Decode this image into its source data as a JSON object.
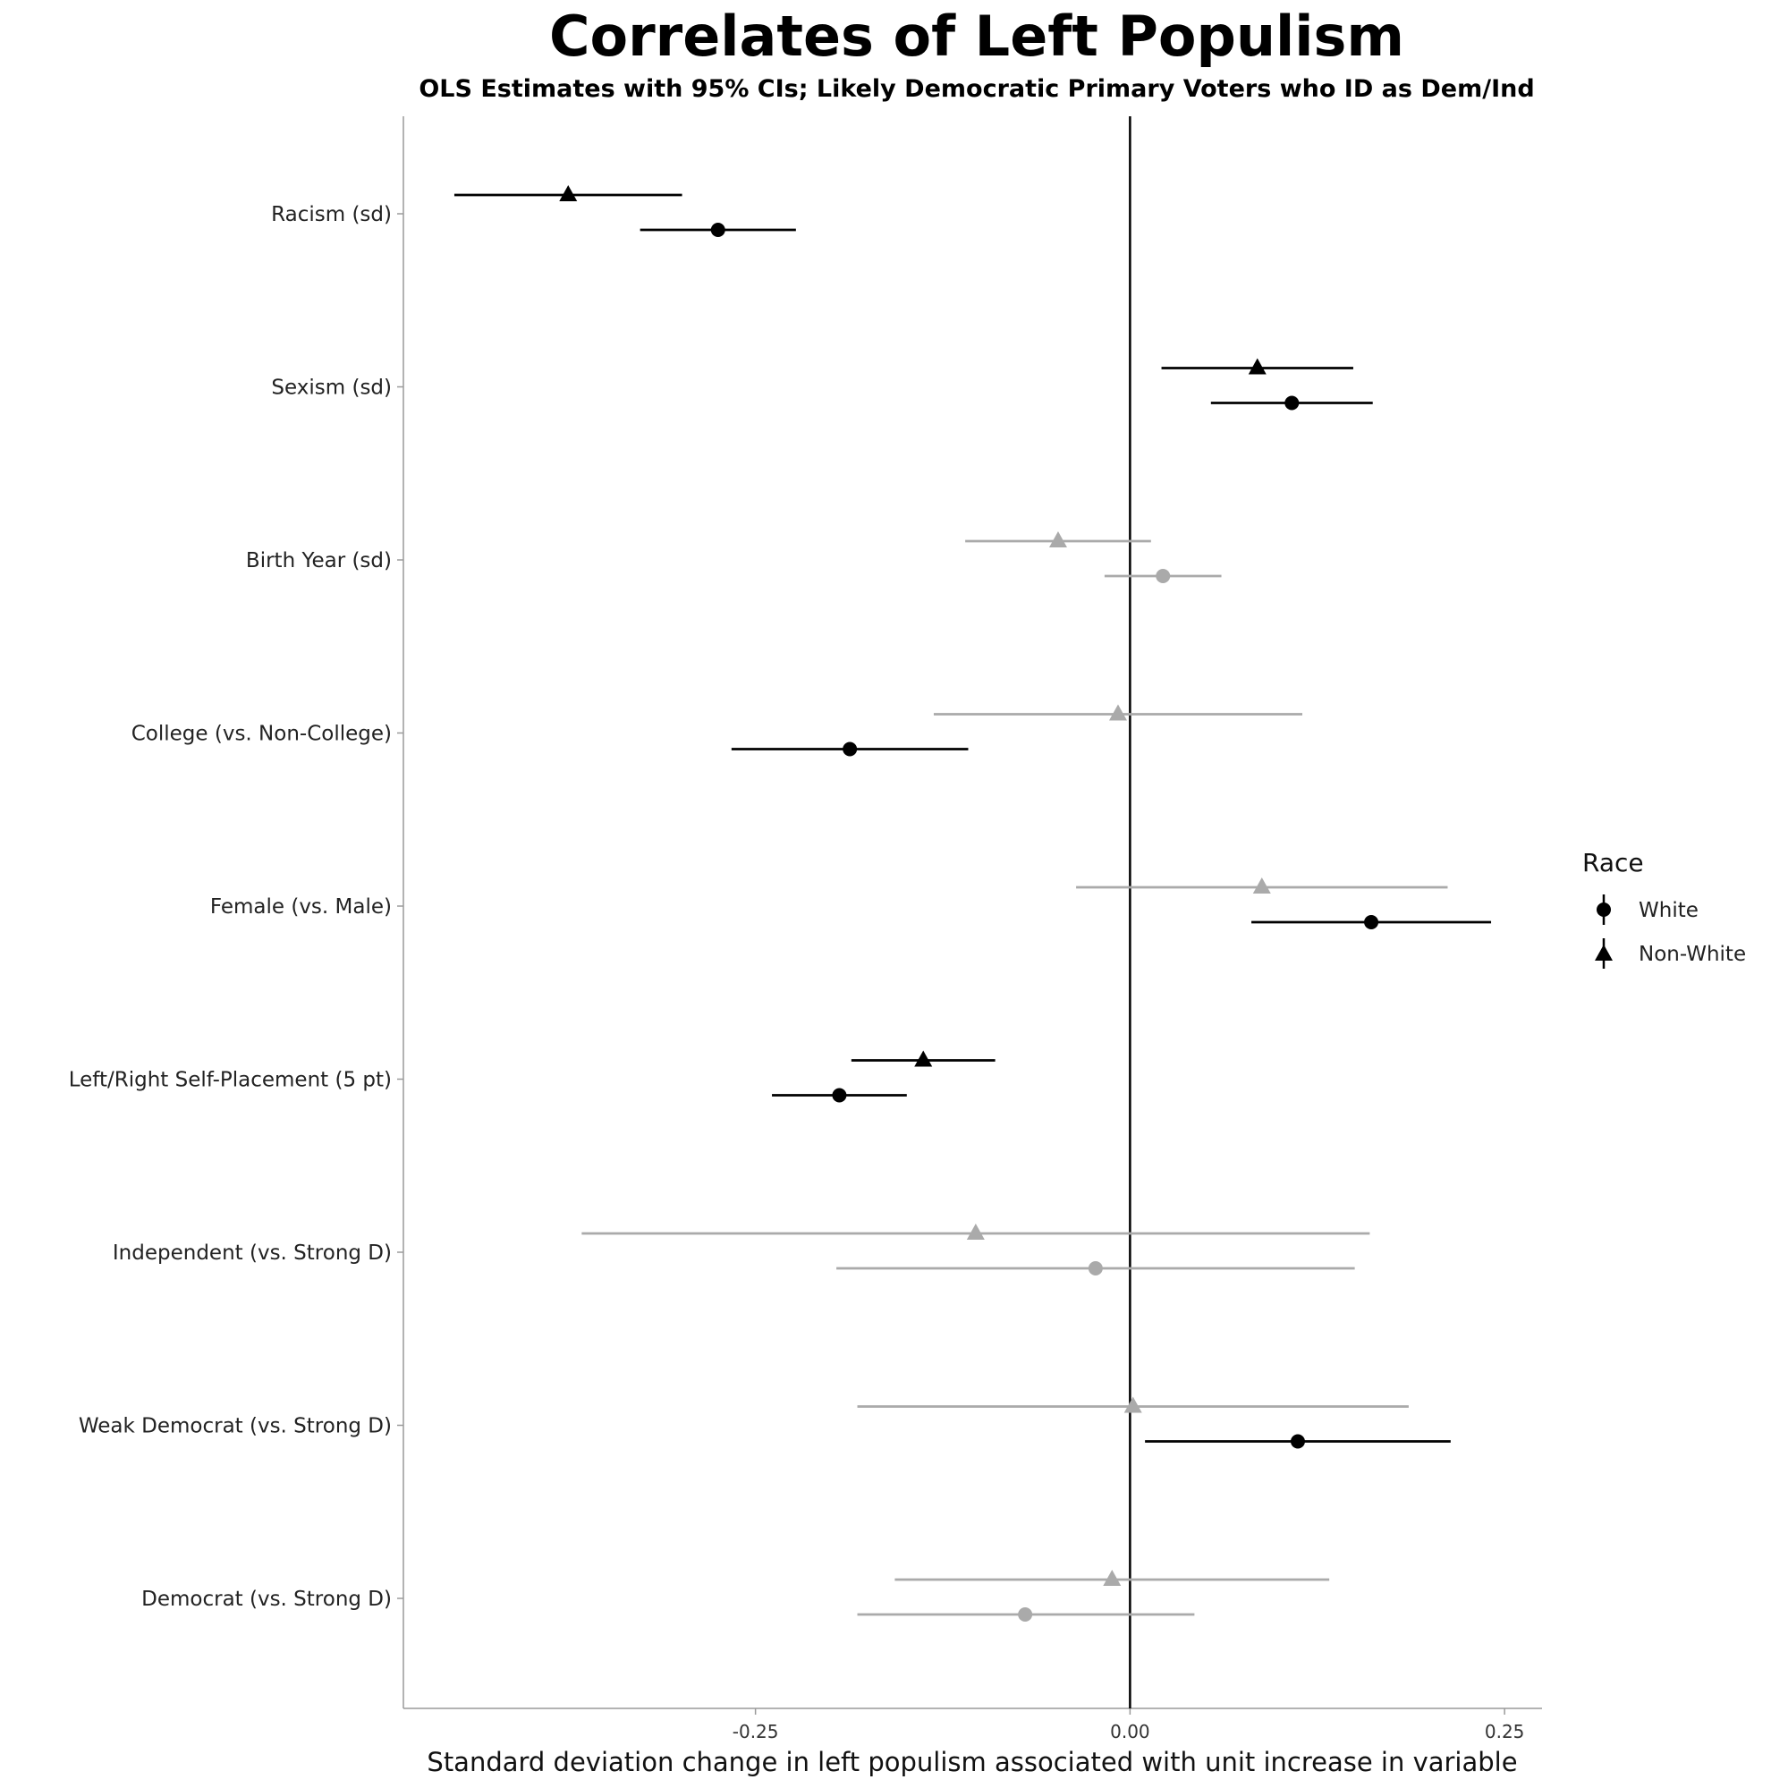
{
  "chart_data": {
    "type": "scatter",
    "title": "Correlates of Left Populism",
    "subtitle": "OLS Estimates with 95% CIs; Likely Democratic Primary Voters who ID as Dem/Ind",
    "xlabel": "Standard deviation change in left populism associated with unit increase in variable",
    "ylabel": "",
    "xlim": [
      -0.485,
      0.275
    ],
    "xticks": [
      -0.25,
      0.0,
      0.25
    ],
    "xtick_labels": [
      "-0.25",
      "0.00",
      "0.25"
    ],
    "reference_line": 0,
    "grid": false,
    "categories": [
      "Racism (sd)",
      "Sexism (sd)",
      "Birth Year (sd)",
      "College (vs. Non-College)",
      "Female (vs. Male)",
      "Left/Right Self-Placement (5 pt)",
      "Independent (vs. Strong D)",
      "Weak Democrat (vs. Strong D)",
      "Democrat (vs. Strong D)"
    ],
    "legend": {
      "title": "Race",
      "position": "right",
      "entries": [
        {
          "label": "White",
          "marker": "circle"
        },
        {
          "label": "Non-White",
          "marker": "triangle"
        }
      ]
    },
    "colors": {
      "significant": "#000000",
      "not_significant": "#aaaaaa"
    },
    "series": [
      {
        "name": "White",
        "marker": "circle",
        "estimates": [
          -0.275,
          0.108,
          0.022,
          -0.187,
          0.161,
          -0.194,
          -0.023,
          0.112,
          -0.07
        ],
        "ci_low": [
          -0.327,
          0.054,
          -0.017,
          -0.266,
          0.081,
          -0.239,
          -0.196,
          0.01,
          -0.182
        ],
        "ci_high": [
          -0.223,
          0.162,
          0.061,
          -0.108,
          0.241,
          -0.149,
          0.15,
          0.214,
          0.043
        ],
        "significant": [
          true,
          true,
          false,
          true,
          true,
          true,
          false,
          true,
          false
        ]
      },
      {
        "name": "Non-White",
        "marker": "triangle",
        "estimates": [
          -0.375,
          0.085,
          -0.048,
          -0.008,
          0.088,
          -0.138,
          -0.103,
          0.002,
          -0.012
        ],
        "ci_low": [
          -0.451,
          0.021,
          -0.11,
          -0.131,
          -0.036,
          -0.186,
          -0.366,
          -0.182,
          -0.157
        ],
        "ci_high": [
          -0.299,
          0.149,
          0.014,
          0.115,
          0.212,
          -0.09,
          0.16,
          0.186,
          0.133
        ],
        "significant": [
          true,
          true,
          false,
          false,
          false,
          true,
          false,
          false,
          false
        ]
      }
    ]
  }
}
